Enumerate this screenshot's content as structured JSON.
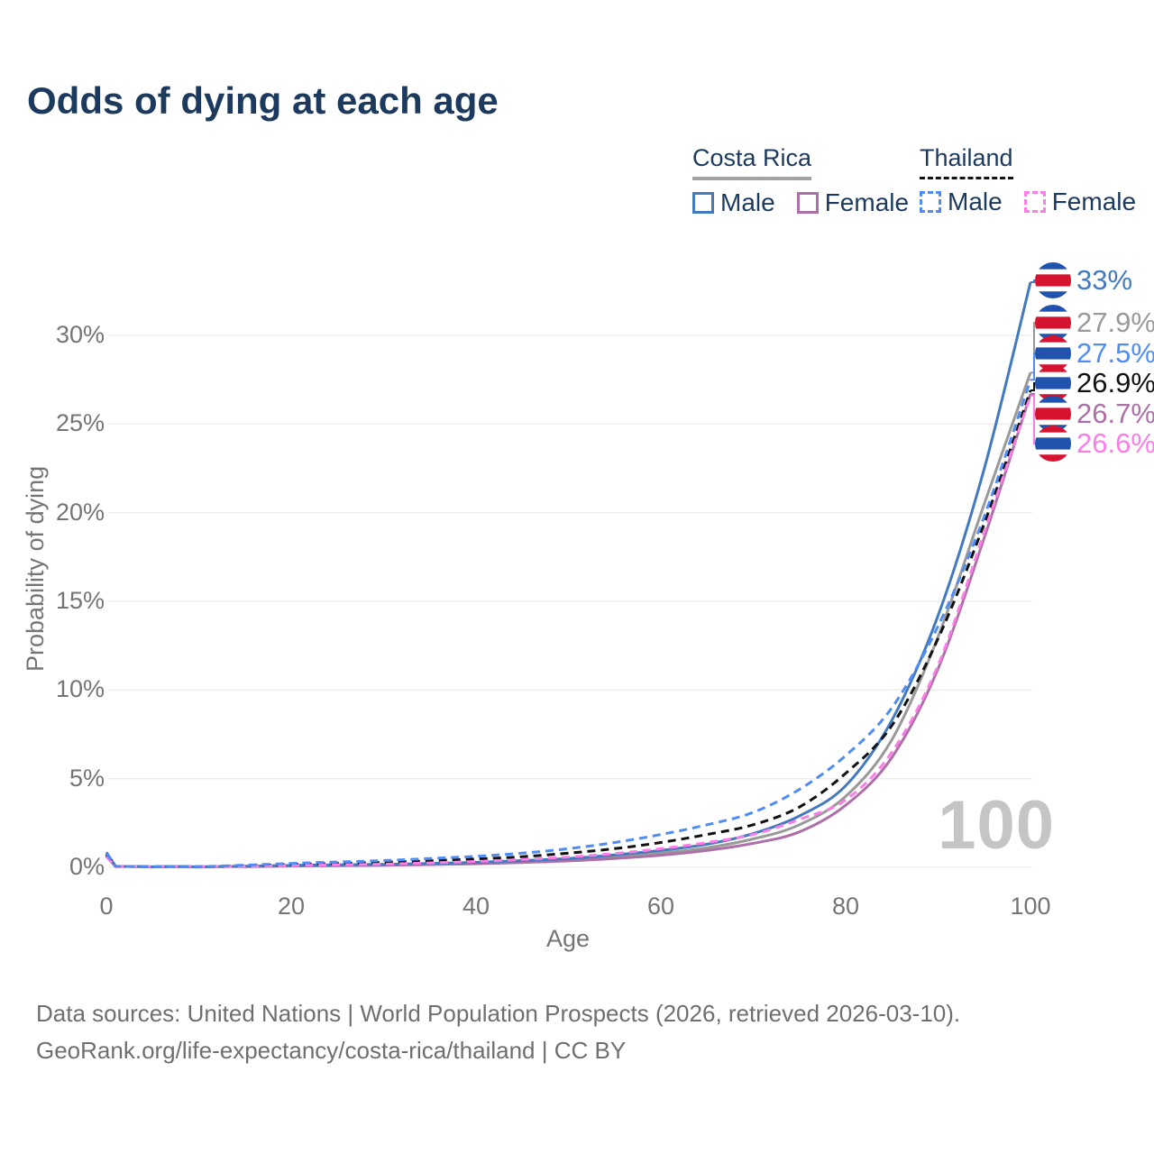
{
  "title": "Odds of dying at each age",
  "colors": {
    "title_text": "#1c3a5e",
    "axis_text": "#757575",
    "footer_text": "#6f6f6f",
    "gridline": "#ececec",
    "watermark_text": "#c5c5c5"
  },
  "legend": {
    "groups": [
      {
        "label": "Costa Rica",
        "line_style": "solid",
        "line_color": "#a3a3a3",
        "items": [
          {
            "id": "cr-male",
            "label": "Male",
            "color": "#4379bf",
            "dash": "solid"
          },
          {
            "id": "cr-female",
            "label": "Female",
            "color": "#ad6fa8",
            "dash": "solid"
          }
        ]
      },
      {
        "label": "Thailand",
        "line_style": "dashed",
        "line_color": "#111111",
        "items": [
          {
            "id": "th-male",
            "label": "Male",
            "color": "#4f8df5",
            "dash": "dashed"
          },
          {
            "id": "th-female",
            "label": "Female",
            "color": "#fb7de6",
            "dash": "dashed"
          }
        ]
      }
    ]
  },
  "chart_data": {
    "type": "line",
    "title": "Odds of dying at each age",
    "xlabel": "Age",
    "ylabel": "Probability of dying",
    "xlim": [
      0,
      100
    ],
    "ylim_percent": [
      0,
      33
    ],
    "xticks": [
      0,
      20,
      40,
      60,
      80,
      100
    ],
    "yticks_percent": [
      0,
      5,
      10,
      15,
      20,
      25,
      30
    ],
    "grid": "horizontal",
    "legend_position": "top-right",
    "watermark": "100",
    "ages": [
      0,
      1,
      5,
      10,
      15,
      20,
      25,
      30,
      35,
      40,
      45,
      50,
      55,
      60,
      65,
      70,
      75,
      80,
      85,
      90,
      95,
      100
    ],
    "series": [
      {
        "id": "cr-both",
        "name": "Costa Rica — Both sexes",
        "country": "Costa Rica",
        "sex": "Both",
        "color": "#999999",
        "line": "solid",
        "flag": "costa-rica",
        "end_label": "27.9%",
        "values_percent": [
          0.75,
          0.05,
          0.02,
          0.02,
          0.05,
          0.09,
          0.12,
          0.15,
          0.19,
          0.25,
          0.33,
          0.44,
          0.6,
          0.8,
          1.1,
          1.6,
          2.4,
          4.0,
          7.2,
          13.0,
          20.5,
          27.9
        ]
      },
      {
        "id": "cr-female",
        "name": "Costa Rica — Female",
        "country": "Costa Rica",
        "sex": "Female",
        "color": "#ad6fa8",
        "line": "solid",
        "flag": "costa-rica",
        "end_label": "26.7%",
        "values_percent": [
          0.65,
          0.04,
          0.02,
          0.02,
          0.04,
          0.07,
          0.09,
          0.11,
          0.15,
          0.2,
          0.27,
          0.36,
          0.5,
          0.68,
          0.95,
          1.35,
          2.0,
          3.5,
          6.2,
          11.2,
          18.6,
          26.7
        ]
      },
      {
        "id": "cr-male",
        "name": "Costa Rica — Male",
        "country": "Costa Rica",
        "sex": "Male",
        "color": "#4379bf",
        "line": "solid",
        "flag": "costa-rica",
        "end_label": "33%",
        "values_percent": [
          0.85,
          0.06,
          0.03,
          0.02,
          0.06,
          0.11,
          0.14,
          0.17,
          0.22,
          0.28,
          0.38,
          0.5,
          0.7,
          0.95,
          1.3,
          1.9,
          2.9,
          4.6,
          8.3,
          14.2,
          22.5,
          33.0
        ]
      },
      {
        "id": "th-both",
        "name": "Thailand — Both sexes",
        "country": "Thailand",
        "sex": "Both",
        "color": "#111111",
        "line": "dashed",
        "flag": "thailand",
        "end_label": "26.9%",
        "values_percent": [
          0.7,
          0.05,
          0.03,
          0.03,
          0.09,
          0.16,
          0.22,
          0.28,
          0.37,
          0.47,
          0.6,
          0.8,
          1.05,
          1.4,
          1.85,
          2.4,
          3.4,
          5.3,
          8.0,
          12.9,
          19.4,
          26.9
        ]
      },
      {
        "id": "th-female",
        "name": "Thailand — Female",
        "country": "Thailand",
        "sex": "Female",
        "color": "#fb7de6",
        "line": "dashed",
        "flag": "thailand",
        "end_label": "26.6%",
        "values_percent": [
          0.6,
          0.04,
          0.03,
          0.03,
          0.06,
          0.1,
          0.14,
          0.18,
          0.25,
          0.33,
          0.44,
          0.58,
          0.78,
          1.05,
          1.4,
          1.85,
          2.7,
          3.8,
          6.5,
          11.4,
          18.9,
          26.6
        ]
      },
      {
        "id": "th-male",
        "name": "Thailand — Male",
        "country": "Thailand",
        "sex": "Male",
        "color": "#4f8df5",
        "line": "dashed",
        "flag": "thailand",
        "end_label": "27.5%",
        "values_percent": [
          0.8,
          0.06,
          0.03,
          0.04,
          0.12,
          0.22,
          0.3,
          0.38,
          0.5,
          0.62,
          0.8,
          1.05,
          1.4,
          1.85,
          2.4,
          3.1,
          4.4,
          6.3,
          9.0,
          13.6,
          19.8,
          27.5
        ]
      }
    ]
  },
  "flags": {
    "costa-rica": {
      "stripe_colors": [
        "#2053ae",
        "#ffffff",
        "#d5132e",
        "#ffffff",
        "#2053ae"
      ],
      "stripe_heights": [
        7,
        5,
        12,
        5,
        7
      ]
    },
    "thailand": {
      "stripe_colors": [
        "#d5132e",
        "#ffffff",
        "#2053ae",
        "#ffffff",
        "#d5132e"
      ],
      "stripe_heights": [
        7,
        5,
        12,
        5,
        7
      ]
    }
  },
  "footer": {
    "line1": "Data sources: United Nations | World Population Prospects (2026, retrieved 2026-03-10).",
    "line2": "GeoRank.org/life-expectancy/costa-rica/thailand | CC BY"
  }
}
